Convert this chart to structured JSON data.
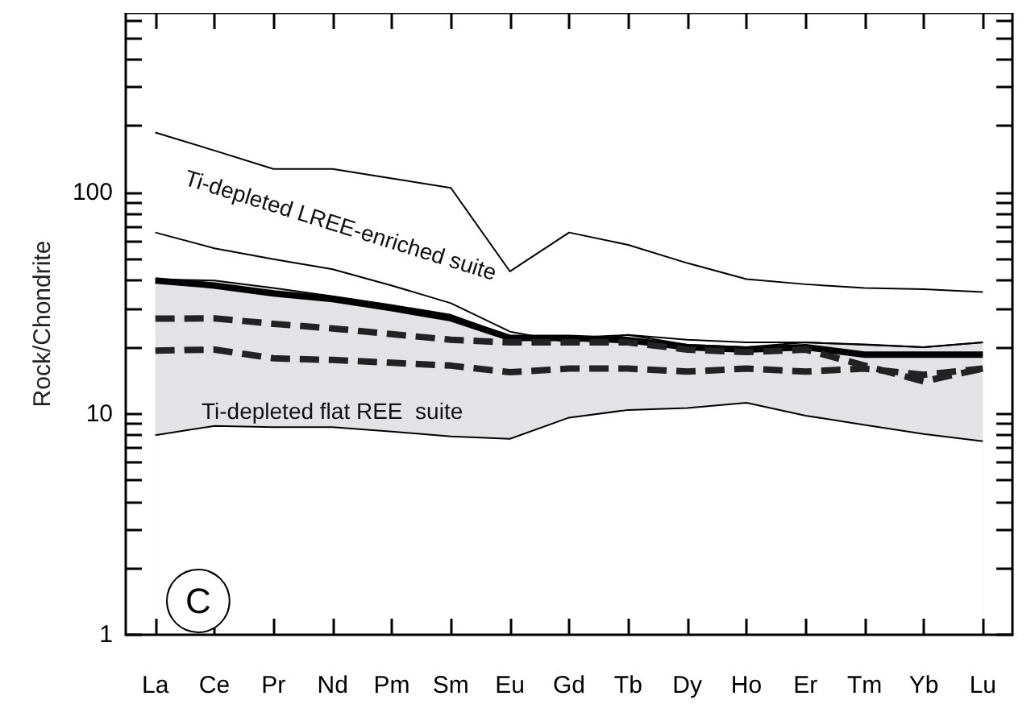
{
  "chart_data": {
    "type": "line",
    "ylabel": "Rock/Chondrite",
    "categories": [
      "La",
      "Ce",
      "Pr",
      "Nd",
      "Pm",
      "Sm",
      "Eu",
      "Gd",
      "Tb",
      "Dy",
      "Ho",
      "Er",
      "Tm",
      "Yb",
      "Lu"
    ],
    "log": true,
    "ylim": [
      1,
      650
    ],
    "yticks": [
      1,
      {
        "value": 2,
        "label": null
      },
      {
        "value": 3,
        "label": null
      },
      {
        "value": 4,
        "label": null
      },
      {
        "value": 5,
        "label": null
      },
      {
        "value": 6,
        "label": null
      },
      {
        "value": 7,
        "label": null
      },
      {
        "value": 8,
        "label": null
      },
      {
        "value": 9,
        "label": null
      },
      10,
      {
        "value": 20,
        "label": null
      },
      {
        "value": 30,
        "label": null
      },
      {
        "value": 40,
        "label": null
      },
      {
        "value": 50,
        "label": null
      },
      {
        "value": 60,
        "label": null
      },
      {
        "value": 70,
        "label": null
      },
      {
        "value": 80,
        "label": null
      },
      {
        "value": 90,
        "label": null
      },
      100,
      {
        "value": 200,
        "label": null
      },
      {
        "value": 300,
        "label": null
      },
      {
        "value": 400,
        "label": null
      },
      {
        "value": 500,
        "label": null
      },
      {
        "value": 600,
        "label": null
      }
    ],
    "grid": false,
    "marker": "none",
    "series": [
      {
        "color": "#000000",
        "values": [
          187,
          155,
          128,
          128,
          116,
          105,
          44,
          66,
          58,
          48,
          40.6,
          38.5,
          37,
          36.6,
          35.5
        ]
      },
      {
        "color": "#000000",
        "values": [
          66,
          56,
          50,
          45,
          38,
          31.6,
          23.5,
          21,
          22.7,
          21.6,
          21,
          21,
          20.6,
          20,
          21
        ]
      },
      {
        "type": "area",
        "color": "#e3e3e5",
        "values": [
          40.5,
          40,
          37,
          34,
          31,
          28,
          22.4,
          22,
          22.7,
          20.5,
          20,
          21,
          20.5,
          20,
          21
        ]
      },
      {
        "type": "area",
        "color": "#ffffff",
        "values": [
          8,
          8.8,
          8.7,
          8.7,
          8.3,
          7.9,
          7.7,
          9.6,
          10.4,
          10.6,
          11.2,
          9.8,
          8.9,
          8.1,
          7.5
        ]
      },
      {
        "color": "#000000",
        "line_style": "solid",
        "values": [
          40,
          38,
          35,
          33,
          30,
          27,
          22,
          22,
          21.5,
          20,
          19.5,
          20,
          18.5,
          18.5,
          18.5
        ]
      },
      {
        "color": "#222222",
        "line_style": "dashed",
        "values": [
          26.9,
          27,
          25.5,
          24.3,
          22.9,
          21.6,
          21,
          21,
          21,
          19.5,
          19,
          19.5,
          16.5,
          14,
          16
        ]
      },
      {
        "color": "#222222",
        "line_style": "dashed",
        "values": [
          19.3,
          19.5,
          17.8,
          17.5,
          17,
          16.5,
          15.4,
          16,
          16,
          15.5,
          16,
          15.5,
          16,
          15,
          16
        ]
      }
    ],
    "annotations": [
      "Ti-depleted LREE-enriched suite",
      "Ti-depleted flat REE  suite",
      "C"
    ]
  }
}
